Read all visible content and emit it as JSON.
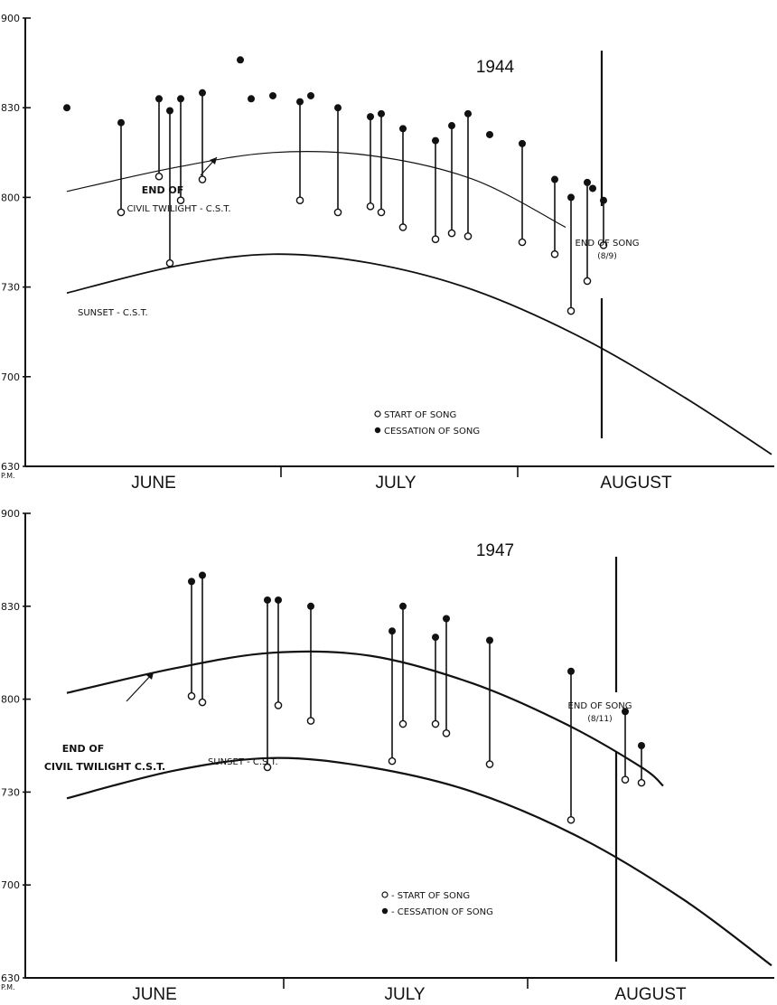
{
  "chart_data": [
    {
      "type": "line",
      "title": "1944",
      "y_ticks": [
        "900",
        "830",
        "800",
        "730",
        "700",
        "630"
      ],
      "y_unit_label": "P.M.",
      "month_labels": [
        "JUNE",
        "JULY",
        "AUGUST"
      ],
      "curves": {
        "twilight": {
          "label_lines": [
            "END OF",
            "CIVIL TWILIGHT - C.S.T."
          ],
          "points": [
            [
              0,
              "8:02"
            ],
            [
              20,
              "8:10"
            ],
            [
              38,
              "8:15"
            ],
            [
              56,
              "8:14"
            ],
            [
              75,
              "8:06"
            ],
            [
              92,
              "7:50"
            ]
          ]
        },
        "sunset": {
          "label": "SUNSET - C.S.T.",
          "points": [
            [
              0,
              "7:28"
            ],
            [
              20,
              "7:37"
            ],
            [
              38,
              "7:41"
            ],
            [
              56,
              "7:38"
            ],
            [
              75,
              "7:29"
            ],
            [
              95,
              "7:13"
            ],
            [
              114,
              "6:53"
            ],
            [
              130,
              "6:34"
            ]
          ]
        }
      },
      "song": [
        {
          "day": 0,
          "stop": "8:30"
        },
        {
          "day": 10,
          "start": "7:55",
          "stop": "8:25"
        },
        {
          "day": 17,
          "start": "8:07",
          "stop": "8:33"
        },
        {
          "day": 19,
          "start": "7:38",
          "stop": "8:29"
        },
        {
          "day": 21,
          "start": "7:59",
          "stop": "8:33"
        },
        {
          "day": 25,
          "start": "8:06",
          "stop": "8:35"
        },
        {
          "day": 32,
          "stop": "8:46"
        },
        {
          "day": 34,
          "stop": "8:33"
        },
        {
          "day": 38,
          "stop": "8:34"
        },
        {
          "day": 43,
          "start": "7:59",
          "stop": "8:32"
        },
        {
          "day": 45,
          "stop": "8:34"
        },
        {
          "day": 50,
          "start": "7:55",
          "stop": "8:30"
        },
        {
          "day": 56,
          "start": "7:57",
          "stop": "8:27"
        },
        {
          "day": 58,
          "start": "7:55",
          "stop": "8:28"
        },
        {
          "day": 62,
          "start": "7:50",
          "stop": "8:23"
        },
        {
          "day": 68,
          "start": "7:46",
          "stop": "8:19"
        },
        {
          "day": 71,
          "start": "7:48",
          "stop": "8:24"
        },
        {
          "day": 74,
          "start": "7:47",
          "stop": "8:28"
        },
        {
          "day": 78,
          "stop": "8:21"
        },
        {
          "day": 84,
          "start": "7:45",
          "stop": "8:18"
        },
        {
          "day": 90,
          "start": "7:41",
          "stop": "8:06"
        },
        {
          "day": 93,
          "start": "7:22",
          "stop": "8:00"
        },
        {
          "day": 96,
          "start": "7:32",
          "stop": "8:05"
        },
        {
          "day": 97,
          "stop": "8:03"
        },
        {
          "day": 99,
          "start": "7:44",
          "stop": "7:59"
        }
      ],
      "end_of_song": {
        "label": "END OF SONG",
        "date": "(8/9)",
        "day": 109
      },
      "legend": [
        "START OF SONG",
        "CESSATION OF SONG"
      ]
    },
    {
      "type": "line",
      "title": "1947",
      "y_ticks": [
        "900",
        "830",
        "800",
        "730",
        "700",
        "630"
      ],
      "y_unit_label": "P.M.",
      "month_labels": [
        "JUNE",
        "JULY",
        "AUGUST"
      ],
      "curves": {
        "twilight": {
          "label_lines": [
            "END OF",
            "CIVIL TWILIGHT C.S.T."
          ],
          "points": [
            [
              0,
              "8:02"
            ],
            [
              20,
              "8:10"
            ],
            [
              38,
              "8:15"
            ],
            [
              56,
              "8:14"
            ],
            [
              75,
              "8:05"
            ],
            [
              92,
              "7:52"
            ],
            [
              106,
              "7:38"
            ],
            [
              110,
              "7:32"
            ]
          ]
        },
        "sunset": {
          "label": "SUNSET - C.S.T.",
          "points": [
            [
              0,
              "7:28"
            ],
            [
              20,
              "7:37"
            ],
            [
              38,
              "7:41"
            ],
            [
              56,
              "7:38"
            ],
            [
              75,
              "7:30"
            ],
            [
              95,
              "7:15"
            ],
            [
              114,
              "6:55"
            ],
            [
              130,
              "6:34"
            ]
          ]
        }
      },
      "song": [
        {
          "day": 23,
          "start": "8:01",
          "stop": "8:38"
        },
        {
          "day": 25,
          "start": "7:59",
          "stop": "8:40"
        },
        {
          "day": 37,
          "start": "7:38",
          "stop": "8:32"
        },
        {
          "day": 39,
          "start": "7:58",
          "stop": "8:32"
        },
        {
          "day": 45,
          "start": "7:53",
          "stop": "8:30"
        },
        {
          "day": 60,
          "start": "7:40",
          "stop": "8:22"
        },
        {
          "day": 62,
          "start": "7:52",
          "stop": "8:30"
        },
        {
          "day": 68,
          "start": "7:52",
          "stop": "8:20"
        },
        {
          "day": 70,
          "start": "7:49",
          "stop": "8:26"
        },
        {
          "day": 78,
          "start": "7:39",
          "stop": "8:19"
        },
        {
          "day": 93,
          "start": "7:21",
          "stop": "8:09"
        },
        {
          "day": 103,
          "start": "7:34",
          "stop": "7:56"
        },
        {
          "day": 106,
          "start": "7:33",
          "stop": "7:45"
        }
      ],
      "end_of_song": {
        "label": "END OF SONG",
        "date": "(8/11)",
        "day": 111
      },
      "legend": [
        "- START OF SONG",
        "- CESSATION  OF SONG"
      ]
    }
  ]
}
